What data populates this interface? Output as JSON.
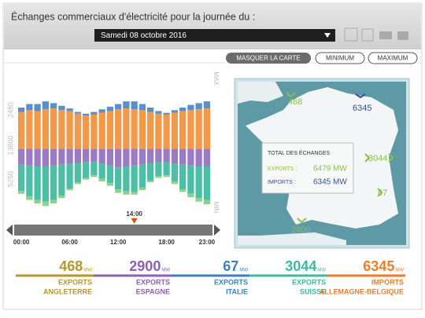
{
  "header": {
    "title": "Échanges commerciaux d'électricité pour la journée du :",
    "date": "Samedi 08 octobre 2016"
  },
  "buttons": [
    "MASQUER LA CARTE",
    "MINIMUM",
    "MAXIMUM"
  ],
  "chart_data": {
    "type": "bar",
    "stacked": true,
    "y_axis_labels": [
      "2480",
      "13800",
      "5250"
    ],
    "max_label": "MAX",
    "min_label": "MIN",
    "cursor_label": "14:00",
    "cursor_index": 14,
    "categories": [
      "00:00",
      null,
      null,
      null,
      null,
      null,
      "06:00",
      null,
      null,
      null,
      null,
      null,
      "12:00",
      null,
      null,
      null,
      null,
      null,
      "18:00",
      null,
      null,
      null,
      null,
      "23:00"
    ],
    "ylim": [
      -7000,
      8000
    ],
    "series": [
      {
        "color": "#f39a4a",
        "values": [
          4200,
          4400,
          4300,
          4500,
          4600,
          4400,
          4300,
          4000,
          3800,
          3900,
          4100,
          4300,
          4500,
          4600,
          4500,
          4400,
          4200,
          4000,
          3900,
          4100,
          4300,
          4400,
          4500,
          4600
        ]
      },
      {
        "color": "#5b8fc9",
        "values": [
          500,
          700,
          800,
          900,
          600,
          500,
          300,
          200,
          200,
          300,
          400,
          500,
          600,
          800,
          900,
          700,
          500,
          300,
          200,
          300,
          400,
          600,
          700,
          800
        ]
      },
      {
        "color": "#9b7cc4",
        "values": [
          -1800,
          -1900,
          -2000,
          -2000,
          -1900,
          -1800,
          -1700,
          -1600,
          -1500,
          -1500,
          -1700,
          -1900,
          -2100,
          -2000,
          -1900,
          -1800,
          -1600,
          -1500,
          -1500,
          -1700,
          -1800,
          -1900,
          -2000,
          -2000
        ]
      },
      {
        "color": "#4cbfa6",
        "values": [
          -3000,
          -3500,
          -3800,
          -4000,
          -3900,
          -3500,
          -2800,
          -2200,
          -1800,
          -1500,
          -1700,
          -2000,
          -2500,
          -2800,
          -3000,
          -2600,
          -2000,
          -1600,
          -1500,
          -2000,
          -2800,
          -3200,
          -3600,
          -3800
        ]
      },
      {
        "color": "#8fd18b",
        "values": [
          -300,
          -400,
          -400,
          -500,
          -400,
          -300,
          -200,
          -200,
          -200,
          -200,
          -300,
          -300,
          -400,
          -400,
          -300,
          -300,
          -200,
          -200,
          -200,
          -300,
          -300,
          -400,
          -400,
          -500
        ]
      }
    ]
  },
  "map": {
    "labels": [
      "468",
      "6345",
      "3044",
      "67",
      "2900"
    ],
    "tooltip": {
      "title": "TOTAL DES ÉCHANGES",
      "exports_label": "EXPORTS :",
      "exports_value": "6479 MW",
      "imports_label": "IMPORTS :",
      "imports_value": "6345 MW"
    }
  },
  "summary": [
    {
      "value": "468",
      "unit": "MW",
      "kind": "EXPORTS",
      "country": "ANGLETERRE",
      "color": "#b8962e"
    },
    {
      "value": "2900",
      "unit": "MW",
      "kind": "EXPORTS",
      "country": "ESPAGNE",
      "color": "#8e5fb6"
    },
    {
      "value": "67",
      "unit": "MW",
      "kind": "EXPORTS",
      "country": "ITALIE",
      "color": "#3f7fc1"
    },
    {
      "value": "3044",
      "unit": "MW",
      "kind": "EXPORTS",
      "country": "SUISSE",
      "color": "#3fb8a0"
    },
    {
      "value": "6345",
      "unit": "MW",
      "kind": "IMPORTS",
      "country": "ALLEMAGNE-BELGIQUE",
      "color": "#ee7d2b"
    }
  ]
}
